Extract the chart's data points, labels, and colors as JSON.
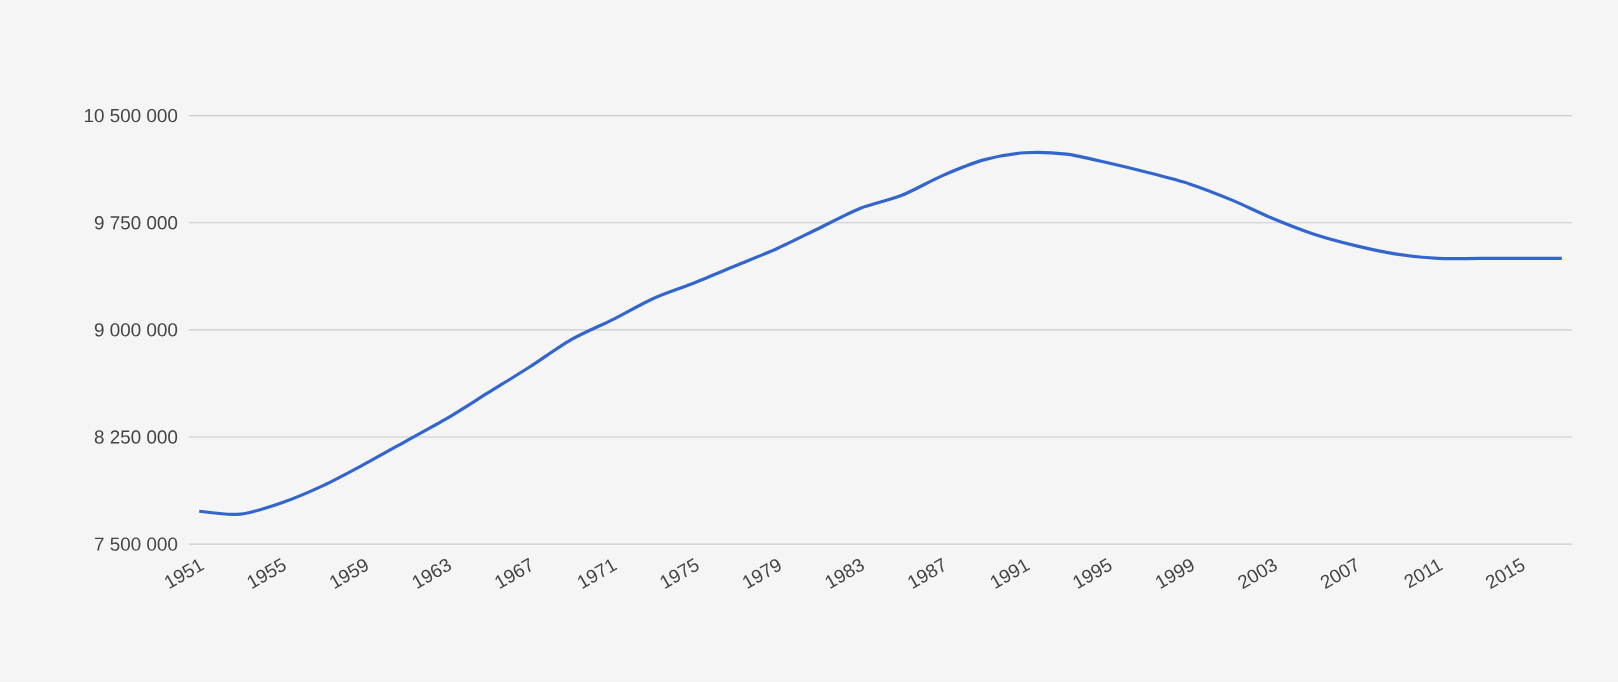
{
  "chart_data": {
    "type": "line",
    "x": [
      1951,
      1953,
      1955,
      1957,
      1959,
      1961,
      1963,
      1965,
      1967,
      1969,
      1971,
      1973,
      1975,
      1977,
      1979,
      1981,
      1983,
      1985,
      1987,
      1989,
      1991,
      1993,
      1995,
      1997,
      1999,
      2001,
      2003,
      2005,
      2007,
      2009,
      2011,
      2013,
      2015,
      2017
    ],
    "series": [
      {
        "color": "#3366cc",
        "values": [
          7730000,
          7710000,
          7790000,
          7910000,
          8060000,
          8220000,
          8380000,
          8560000,
          8740000,
          8930000,
          9070000,
          9220000,
          9330000,
          9450000,
          9570000,
          9710000,
          9850000,
          9940000,
          10080000,
          10190000,
          10240000,
          10230000,
          10170000,
          10100000,
          10020000,
          9910000,
          9780000,
          9670000,
          9590000,
          9530000,
          9500000,
          9500000,
          9500000,
          9500000
        ]
      }
    ],
    "xlim": [
      1950.5,
      2017.5
    ],
    "xticks": [
      1951,
      1955,
      1959,
      1963,
      1967,
      1971,
      1975,
      1979,
      1983,
      1987,
      1991,
      1995,
      1999,
      2003,
      2007,
      2011,
      2015
    ],
    "ylim": [
      7500000,
      10500000
    ],
    "yticks": [
      {
        "value": 7500000,
        "label": "7 500 000"
      },
      {
        "value": 8250000,
        "label": "8 250 000"
      },
      {
        "value": 9000000,
        "label": "9 000 000"
      },
      {
        "value": 9750000,
        "label": "9 750 000"
      },
      {
        "value": 10500000,
        "label": "10 500 000"
      }
    ],
    "grid": "y",
    "marker": "none",
    "line_style": "solid"
  }
}
